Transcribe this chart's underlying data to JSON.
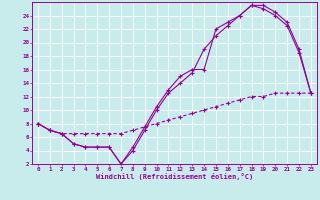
{
  "xlabel": "Windchill (Refroidissement éolien,°C)",
  "xlim": [
    -0.5,
    23.5
  ],
  "ylim": [
    2,
    26
  ],
  "xticks": [
    0,
    1,
    2,
    3,
    4,
    5,
    6,
    7,
    8,
    9,
    10,
    11,
    12,
    13,
    14,
    15,
    16,
    17,
    18,
    19,
    20,
    21,
    22,
    23
  ],
  "yticks": [
    2,
    4,
    6,
    8,
    10,
    12,
    14,
    16,
    18,
    20,
    22,
    24
  ],
  "background_color": "#c8ecec",
  "line_color": "#990099",
  "grid_color": "#ffffff",
  "line1_x": [
    0,
    1,
    2,
    3,
    4,
    5,
    6,
    7,
    8,
    9,
    10,
    11,
    12,
    13,
    14,
    15,
    16,
    17,
    18,
    19,
    20,
    21,
    22,
    23
  ],
  "line1_y": [
    8,
    7,
    6.5,
    5,
    4.5,
    4.5,
    4.5,
    2,
    4.5,
    7.5,
    10.5,
    13,
    15,
    16,
    16,
    22,
    23,
    24,
    25.5,
    25.5,
    24.5,
    23,
    19,
    12.5
  ],
  "line2_x": [
    0,
    1,
    2,
    3,
    4,
    5,
    6,
    7,
    8,
    9,
    10,
    11,
    12,
    13,
    14,
    15,
    16,
    17,
    18,
    19,
    20,
    21,
    22,
    23
  ],
  "line2_y": [
    8,
    7,
    6.5,
    5,
    4.5,
    4.5,
    4.5,
    2,
    4,
    7,
    10,
    12.5,
    14,
    15.5,
    19,
    21,
    22.5,
    24,
    25.5,
    25,
    24,
    22.5,
    18.5,
    12.5
  ],
  "line3_x": [
    0,
    1,
    2,
    3,
    4,
    5,
    6,
    7,
    8,
    9,
    10,
    11,
    12,
    13,
    14,
    15,
    16,
    17,
    18,
    19,
    20,
    21,
    22,
    23
  ],
  "line3_y": [
    8,
    7,
    6.5,
    6.5,
    6.5,
    6.5,
    6.5,
    6.5,
    7,
    7.5,
    8,
    8.5,
    9,
    9.5,
    10,
    10.5,
    11,
    11.5,
    12,
    12,
    12.5,
    12.5,
    12.5,
    12.5
  ]
}
